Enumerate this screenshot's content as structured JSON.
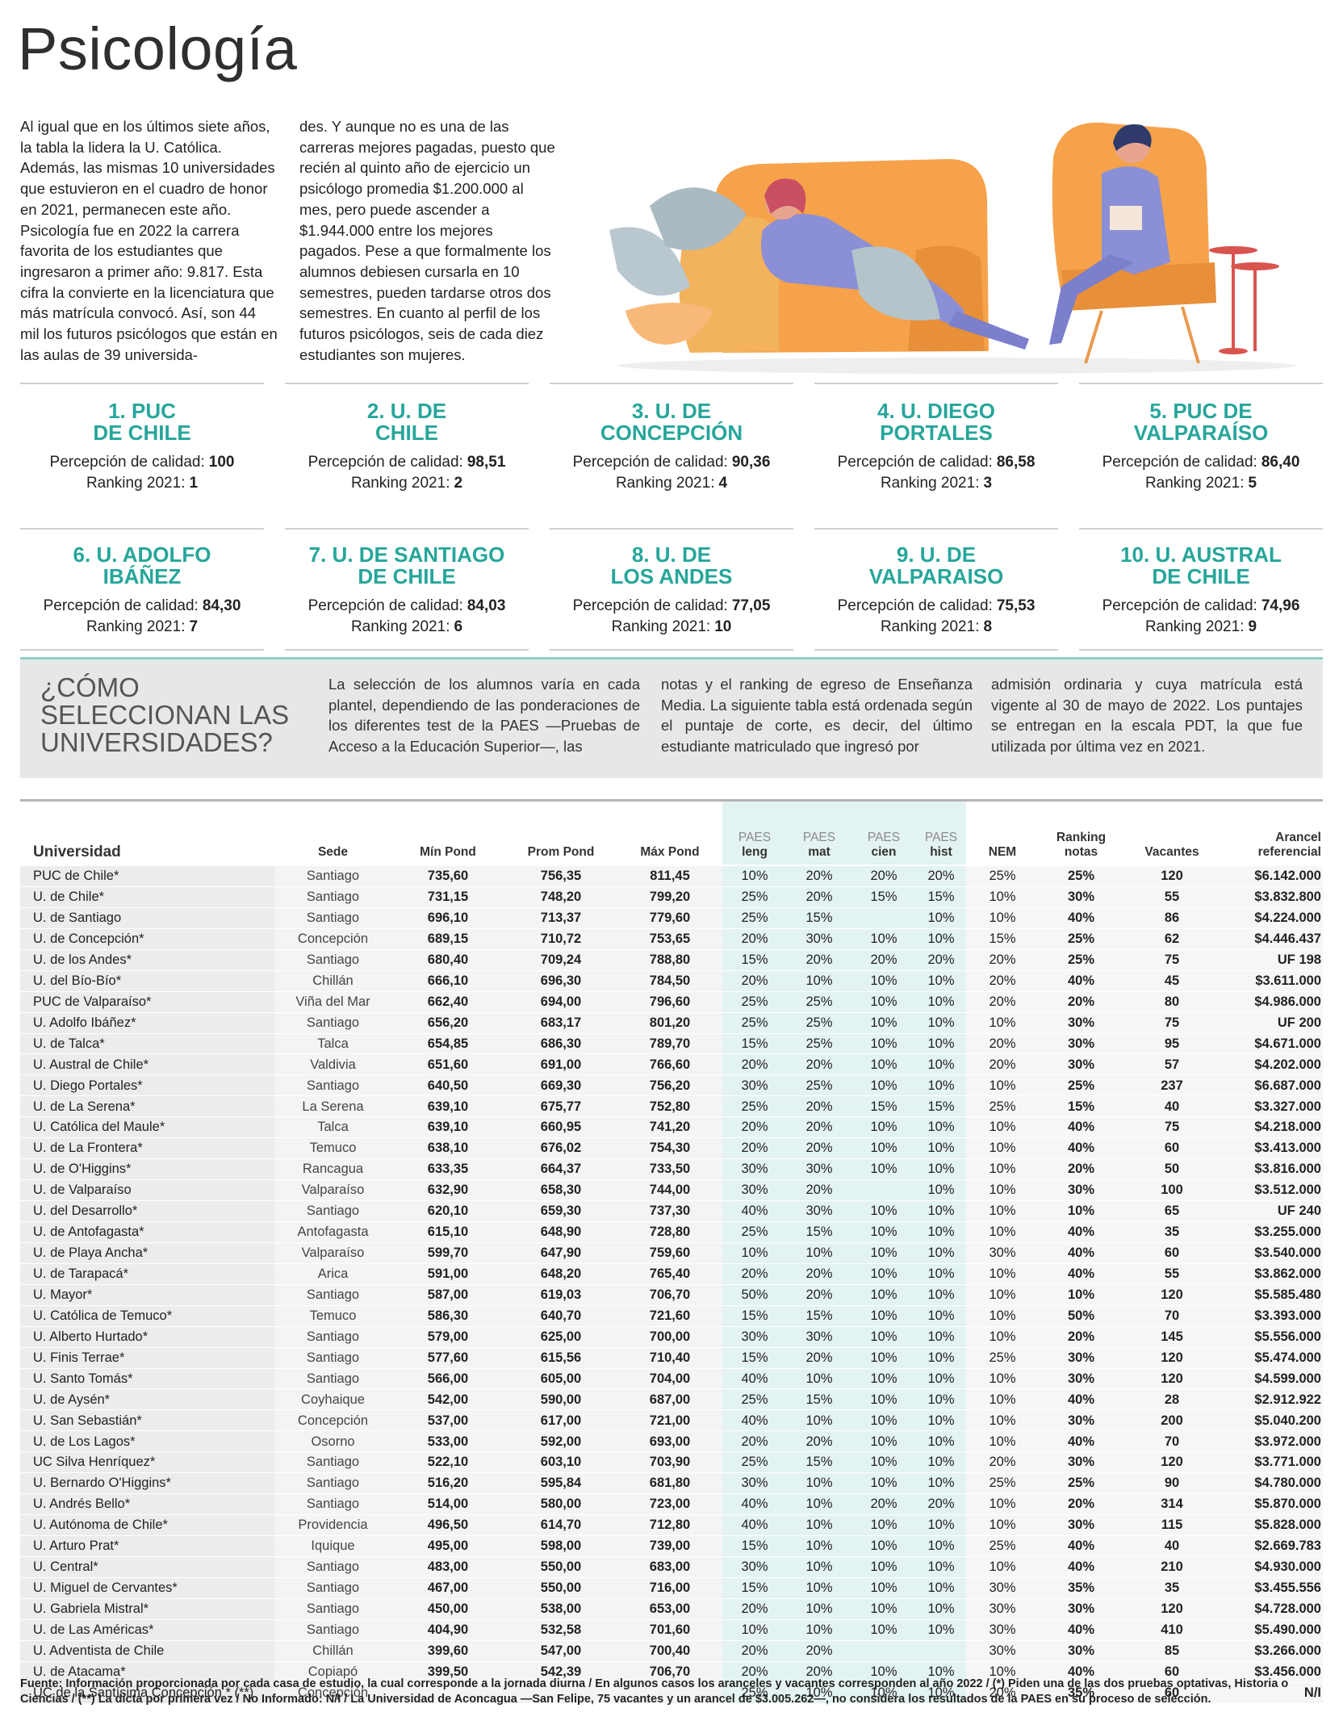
{
  "title": "Psicología",
  "intro": [
    "Al igual que en los últimos siete años, la tabla la lidera la U. Católica. Además, las mismas 10 universidades que estuvieron en el cuadro de honor en 2021, permanecen este año. Psicología fue en 2022 la carrera favorita de los estudiantes que ingresaron a primer año: 9.817. Esta cifra la convierte en la licenciatura que más matrícula convocó. Así, son 44 mil los futuros psicólogos que están en las aulas de 39 universida-",
    "des. Y aunque no es una de las carreras mejores pagadas, puesto que recién al quinto año de ejercicio un psicólogo promedia $1.200.000 al mes, pero puede ascender a $1.944.000 entre los mejores pagados. Pese a que formalmente los alumnos debiesen cursarla en 10 semestres, pueden tardarse otros dos semestres. En cuanto al perfil de los futuros psicólogos, seis de cada diez estudiantes son mujeres."
  ],
  "ranking": {
    "quality_label": "Percepción de calidad:",
    "ranking_label": "Ranking 2021:",
    "items": [
      {
        "name": [
          "1. PUC",
          "DE CHILE"
        ],
        "quality": "100",
        "ranking": "1"
      },
      {
        "name": [
          "2. U. DE",
          "CHILE"
        ],
        "quality": "98,51",
        "ranking": "2"
      },
      {
        "name": [
          "3. U. DE",
          "CONCEPCIÓN"
        ],
        "quality": "90,36",
        "ranking": "4"
      },
      {
        "name": [
          "4. U. DIEGO",
          "PORTALES"
        ],
        "quality": "86,58",
        "ranking": "3"
      },
      {
        "name": [
          "5. PUC DE",
          "VALPARAÍSO"
        ],
        "quality": "86,40",
        "ranking": "5"
      },
      {
        "name": [
          "6. U. ADOLFO",
          "IBÁÑEZ"
        ],
        "quality": "84,30",
        "ranking": "7"
      },
      {
        "name": [
          "7. U. DE SANTIAGO",
          "DE CHILE"
        ],
        "quality": "84,03",
        "ranking": "6"
      },
      {
        "name": [
          "8. U. DE",
          "LOS ANDES"
        ],
        "quality": "77,05",
        "ranking": "10"
      },
      {
        "name": [
          "9. U. DE",
          "VALPARAISO"
        ],
        "quality": "75,53",
        "ranking": "8"
      },
      {
        "name": [
          "10. U. AUSTRAL",
          "DE CHILE"
        ],
        "quality": "74,96",
        "ranking": "9"
      }
    ]
  },
  "selection": {
    "heading": [
      "¿CÓMO",
      "SELECCIONAN LAS",
      "UNIVERSIDADES?"
    ],
    "text": [
      "La selección de los alumnos varía en cada plantel, dependiendo de las ponderaciones de los diferentes test de la PAES —Pruebas de Acceso a la Educación Superior—, las",
      "notas y el ranking de egreso de Enseñanza Media. La siguiente tabla está ordenada según el puntaje de corte, es decir, del último estudiante matriculado que ingresó por",
      "admisión ordinaria y cuya matrícula está vigente al 30 de mayo de 2022. Los puntajes se entregan en la escala PDT, la que fue utilizada por última vez en 2021."
    ]
  },
  "table": {
    "columns": [
      [
        "Universidad"
      ],
      [
        "Sede"
      ],
      [
        "Mín Pond"
      ],
      [
        "Prom Pond"
      ],
      [
        "Máx Pond"
      ],
      [
        "PAES",
        "leng"
      ],
      [
        "PAES",
        "mat"
      ],
      [
        "PAES",
        "cien"
      ],
      [
        "PAES",
        "hist"
      ],
      [
        "NEM"
      ],
      [
        "Ranking",
        "notas"
      ],
      [
        "Vacantes"
      ],
      [
        "Arancel",
        "referencial"
      ]
    ],
    "rows": [
      [
        "PUC de Chile*",
        "Santiago",
        "735,60",
        "756,35",
        "811,45",
        "10%",
        "20%",
        "20%",
        "20%",
        "25%",
        "25%",
        "120",
        "$6.142.000"
      ],
      [
        "U. de Chile*",
        "Santiago",
        "731,15",
        "748,20",
        "799,20",
        "25%",
        "20%",
        "15%",
        "15%",
        "10%",
        "30%",
        "55",
        "$3.832.800"
      ],
      [
        "U. de Santiago",
        "Santiago",
        "696,10",
        "713,37",
        "779,60",
        "25%",
        "15%",
        null,
        "10%",
        "10%",
        "40%",
        "86",
        "$4.224.000"
      ],
      [
        "U. de Concepción*",
        "Concepción",
        "689,15",
        "710,72",
        "753,65",
        "20%",
        "30%",
        "10%",
        "10%",
        "15%",
        "25%",
        "62",
        "$4.446.437"
      ],
      [
        "U. de los Andes*",
        "Santiago",
        "680,40",
        "709,24",
        "788,80",
        "15%",
        "20%",
        "20%",
        "20%",
        "20%",
        "25%",
        "75",
        "UF 198"
      ],
      [
        "U. del Bío-Bío*",
        "Chillán",
        "666,10",
        "696,30",
        "784,50",
        "20%",
        "10%",
        "10%",
        "10%",
        "20%",
        "40%",
        "45",
        "$3.611.000"
      ],
      [
        "PUC de Valparaíso*",
        "Viña del Mar",
        "662,40",
        "694,00",
        "796,60",
        "25%",
        "25%",
        "10%",
        "10%",
        "20%",
        "20%",
        "80",
        "$4.986.000"
      ],
      [
        "U. Adolfo Ibáñez*",
        "Santiago",
        "656,20",
        "683,17",
        "801,20",
        "25%",
        "25%",
        "10%",
        "10%",
        "10%",
        "30%",
        "75",
        "UF 200"
      ],
      [
        "U. de Talca*",
        "Talca",
        "654,85",
        "686,30",
        "789,70",
        "15%",
        "25%",
        "10%",
        "10%",
        "20%",
        "30%",
        "95",
        "$4.671.000"
      ],
      [
        "U. Austral de Chile*",
        "Valdivia",
        "651,60",
        "691,00",
        "766,60",
        "20%",
        "20%",
        "10%",
        "10%",
        "20%",
        "30%",
        "57",
        "$4.202.000"
      ],
      [
        "U. Diego Portales*",
        "Santiago",
        "640,50",
        "669,30",
        "756,20",
        "30%",
        "25%",
        "10%",
        "10%",
        "10%",
        "25%",
        "237",
        "$6.687.000"
      ],
      [
        "U. de La Serena*",
        "La Serena",
        "639,10",
        "675,77",
        "752,80",
        "25%",
        "20%",
        "15%",
        "15%",
        "25%",
        "15%",
        "40",
        "$3.327.000"
      ],
      [
        "U. Católica del Maule*",
        "Talca",
        "639,10",
        "660,95",
        "741,20",
        "20%",
        "20%",
        "10%",
        "10%",
        "10%",
        "40%",
        "75",
        "$4.218.000"
      ],
      [
        "U. de La Frontera*",
        "Temuco",
        "638,10",
        "676,02",
        "754,30",
        "20%",
        "20%",
        "10%",
        "10%",
        "10%",
        "40%",
        "60",
        "$3.413.000"
      ],
      [
        "U. de O'Higgins*",
        "Rancagua",
        "633,35",
        "664,37",
        "733,50",
        "30%",
        "30%",
        "10%",
        "10%",
        "10%",
        "20%",
        "50",
        "$3.816.000"
      ],
      [
        "U. de Valparaíso",
        "Valparaíso",
        "632,90",
        "658,30",
        "744,00",
        "30%",
        "20%",
        null,
        "10%",
        "10%",
        "30%",
        "100",
        "$3.512.000"
      ],
      [
        "U. del Desarrollo*",
        "Santiago",
        "620,10",
        "659,30",
        "737,30",
        "40%",
        "30%",
        "10%",
        "10%",
        "10%",
        "10%",
        "65",
        "UF 240"
      ],
      [
        "U. de Antofagasta*",
        "Antofagasta",
        "615,10",
        "648,90",
        "728,80",
        "25%",
        "15%",
        "10%",
        "10%",
        "10%",
        "40%",
        "35",
        "$3.255.000"
      ],
      [
        "U. de Playa Ancha*",
        "Valparaíso",
        "599,70",
        "647,90",
        "759,60",
        "10%",
        "10%",
        "10%",
        "10%",
        "30%",
        "40%",
        "60",
        "$3.540.000"
      ],
      [
        "U. de Tarapacá*",
        "Arica",
        "591,00",
        "648,20",
        "765,40",
        "20%",
        "20%",
        "10%",
        "10%",
        "10%",
        "40%",
        "55",
        "$3.862.000"
      ],
      [
        "U. Mayor*",
        "Santiago",
        "587,00",
        "619,03",
        "706,70",
        "50%",
        "20%",
        "10%",
        "10%",
        "10%",
        "10%",
        "120",
        "$5.585.480"
      ],
      [
        "U. Católica de Temuco*",
        "Temuco",
        "586,30",
        "640,70",
        "721,60",
        "15%",
        "15%",
        "10%",
        "10%",
        "10%",
        "50%",
        "70",
        "$3.393.000"
      ],
      [
        "U. Alberto Hurtado*",
        "Santiago",
        "579,00",
        "625,00",
        "700,00",
        "30%",
        "30%",
        "10%",
        "10%",
        "10%",
        "20%",
        "145",
        "$5.556.000"
      ],
      [
        "U. Finis Terrae*",
        "Santiago",
        "577,60",
        "615,56",
        "710,40",
        "15%",
        "20%",
        "10%",
        "10%",
        "25%",
        "30%",
        "120",
        "$5.474.000"
      ],
      [
        "U. Santo Tomás*",
        "Santiago",
        "566,00",
        "605,00",
        "704,00",
        "40%",
        "10%",
        "10%",
        "10%",
        "10%",
        "30%",
        "120",
        "$4.599.000"
      ],
      [
        "U. de Aysén*",
        "Coyhaique",
        "542,00",
        "590,00",
        "687,00",
        "25%",
        "15%",
        "10%",
        "10%",
        "10%",
        "40%",
        "28",
        "$2.912.922"
      ],
      [
        "U. San Sebastián*",
        "Concepción",
        "537,00",
        "617,00",
        "721,00",
        "40%",
        "10%",
        "10%",
        "10%",
        "10%",
        "30%",
        "200",
        "$5.040.200"
      ],
      [
        "U. de Los Lagos*",
        "Osorno",
        "533,00",
        "592,00",
        "693,00",
        "20%",
        "20%",
        "10%",
        "10%",
        "10%",
        "40%",
        "70",
        "$3.972.000"
      ],
      [
        "UC Silva Henríquez*",
        "Santiago",
        "522,10",
        "603,10",
        "703,90",
        "25%",
        "15%",
        "10%",
        "10%",
        "20%",
        "30%",
        "120",
        "$3.771.000"
      ],
      [
        "U. Bernardo O'Higgins*",
        "Santiago",
        "516,20",
        "595,84",
        "681,80",
        "30%",
        "10%",
        "10%",
        "10%",
        "25%",
        "25%",
        "90",
        "$4.780.000"
      ],
      [
        "U. Andrés Bello*",
        "Santiago",
        "514,00",
        "580,00",
        "723,00",
        "40%",
        "10%",
        "20%",
        "20%",
        "10%",
        "20%",
        "314",
        "$5.870.000"
      ],
      [
        "U. Autónoma de Chile*",
        "Providencia",
        "496,50",
        "614,70",
        "712,80",
        "40%",
        "10%",
        "10%",
        "10%",
        "10%",
        "30%",
        "115",
        "$5.828.000"
      ],
      [
        "U. Arturo Prat*",
        "Iquique",
        "495,00",
        "598,00",
        "739,00",
        "15%",
        "10%",
        "10%",
        "10%",
        "25%",
        "40%",
        "40",
        "$2.669.783"
      ],
      [
        "U. Central*",
        "Santiago",
        "483,00",
        "550,00",
        "683,00",
        "30%",
        "10%",
        "10%",
        "10%",
        "10%",
        "40%",
        "210",
        "$4.930.000"
      ],
      [
        "U. Miguel de Cervantes*",
        "Santiago",
        "467,00",
        "550,00",
        "716,00",
        "15%",
        "10%",
        "10%",
        "10%",
        "30%",
        "35%",
        "35",
        "$3.455.556"
      ],
      [
        "U. Gabriela Mistral*",
        "Santiago",
        "450,00",
        "538,00",
        "653,00",
        "20%",
        "10%",
        "10%",
        "10%",
        "30%",
        "30%",
        "120",
        "$4.728.000"
      ],
      [
        "U. de Las Américas*",
        "Santiago",
        "404,90",
        "532,58",
        "701,60",
        "10%",
        "10%",
        "10%",
        "10%",
        "30%",
        "40%",
        "410",
        "$5.490.000"
      ],
      [
        "U. Adventista de Chile",
        "Chillán",
        "399,60",
        "547,00",
        "700,40",
        "20%",
        "20%",
        null,
        null,
        "30%",
        "30%",
        "85",
        "$3.266.000"
      ],
      [
        "U. de Atacama*",
        "Copiapó",
        "399,50",
        "542,39",
        "706,70",
        "20%",
        "20%",
        "10%",
        "10%",
        "10%",
        "40%",
        "60",
        "$3.456.000"
      ],
      [
        "UC de la Santísima Concepción * (**)",
        "Concepción",
        null,
        null,
        null,
        "25%",
        "10%",
        "10%",
        "10%",
        "20%",
        "35%",
        "60",
        "N/I"
      ]
    ]
  },
  "footnote": "Fuente: Información proporcionada por cada casa de estudio, la cual corresponde a la jornada diurna / En algunos casos los aranceles y vacantes corresponden al año 2022 / (*) Piden una de las dos pruebas optativas, Historia o Ciencias / (**) La dicta por primera vez / No Informado: N/I / La Universidad de Aconcagua —San Felipe, 75 vacantes y un arancel de $3.005.262—, no considera los resultados de la PAES en su proceso de selección."
}
